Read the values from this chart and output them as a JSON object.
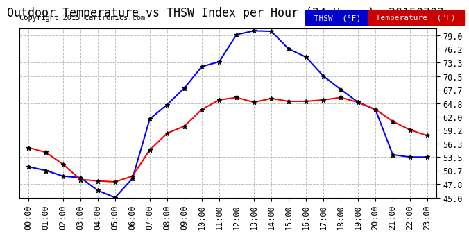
{
  "title": "Outdoor Temperature vs THSW Index per Hour (24 Hours)  20150702",
  "copyright": "Copyright 2015 Cartronics.com",
  "hours": [
    "00:00",
    "01:00",
    "02:00",
    "03:00",
    "04:00",
    "05:00",
    "06:00",
    "07:00",
    "08:00",
    "09:00",
    "10:00",
    "11:00",
    "12:00",
    "13:00",
    "14:00",
    "15:00",
    "16:00",
    "17:00",
    "18:00",
    "19:00",
    "20:00",
    "21:00",
    "22:00",
    "23:00"
  ],
  "thsw": [
    51.5,
    50.7,
    49.5,
    49.2,
    46.5,
    45.0,
    49.0,
    61.5,
    64.5,
    68.0,
    72.5,
    73.5,
    79.2,
    80.0,
    79.9,
    76.2,
    74.5,
    70.5,
    67.7,
    65.0,
    63.5,
    54.0,
    53.5,
    53.5
  ],
  "temperature": [
    55.5,
    54.5,
    52.0,
    48.8,
    48.5,
    48.3,
    49.5,
    55.0,
    58.5,
    60.0,
    63.5,
    65.5,
    66.0,
    65.0,
    65.8,
    65.2,
    65.2,
    65.5,
    66.0,
    65.0,
    63.5,
    61.0,
    59.2,
    58.0
  ],
  "ylim": [
    45.0,
    80.5
  ],
  "yticks": [
    45.0,
    47.8,
    50.7,
    53.5,
    56.3,
    59.2,
    62.0,
    64.8,
    67.7,
    70.5,
    73.3,
    76.2,
    79.0
  ],
  "thsw_color": "#0000ff",
  "temp_color": "#ff0000",
  "bg_color": "#ffffff",
  "grid_color": "#c0c0c0",
  "legend_thsw_bg": "#0000cc",
  "legend_temp_bg": "#cc0000",
  "title_fontsize": 12,
  "copyright_fontsize": 7.5,
  "tick_fontsize": 8.5
}
